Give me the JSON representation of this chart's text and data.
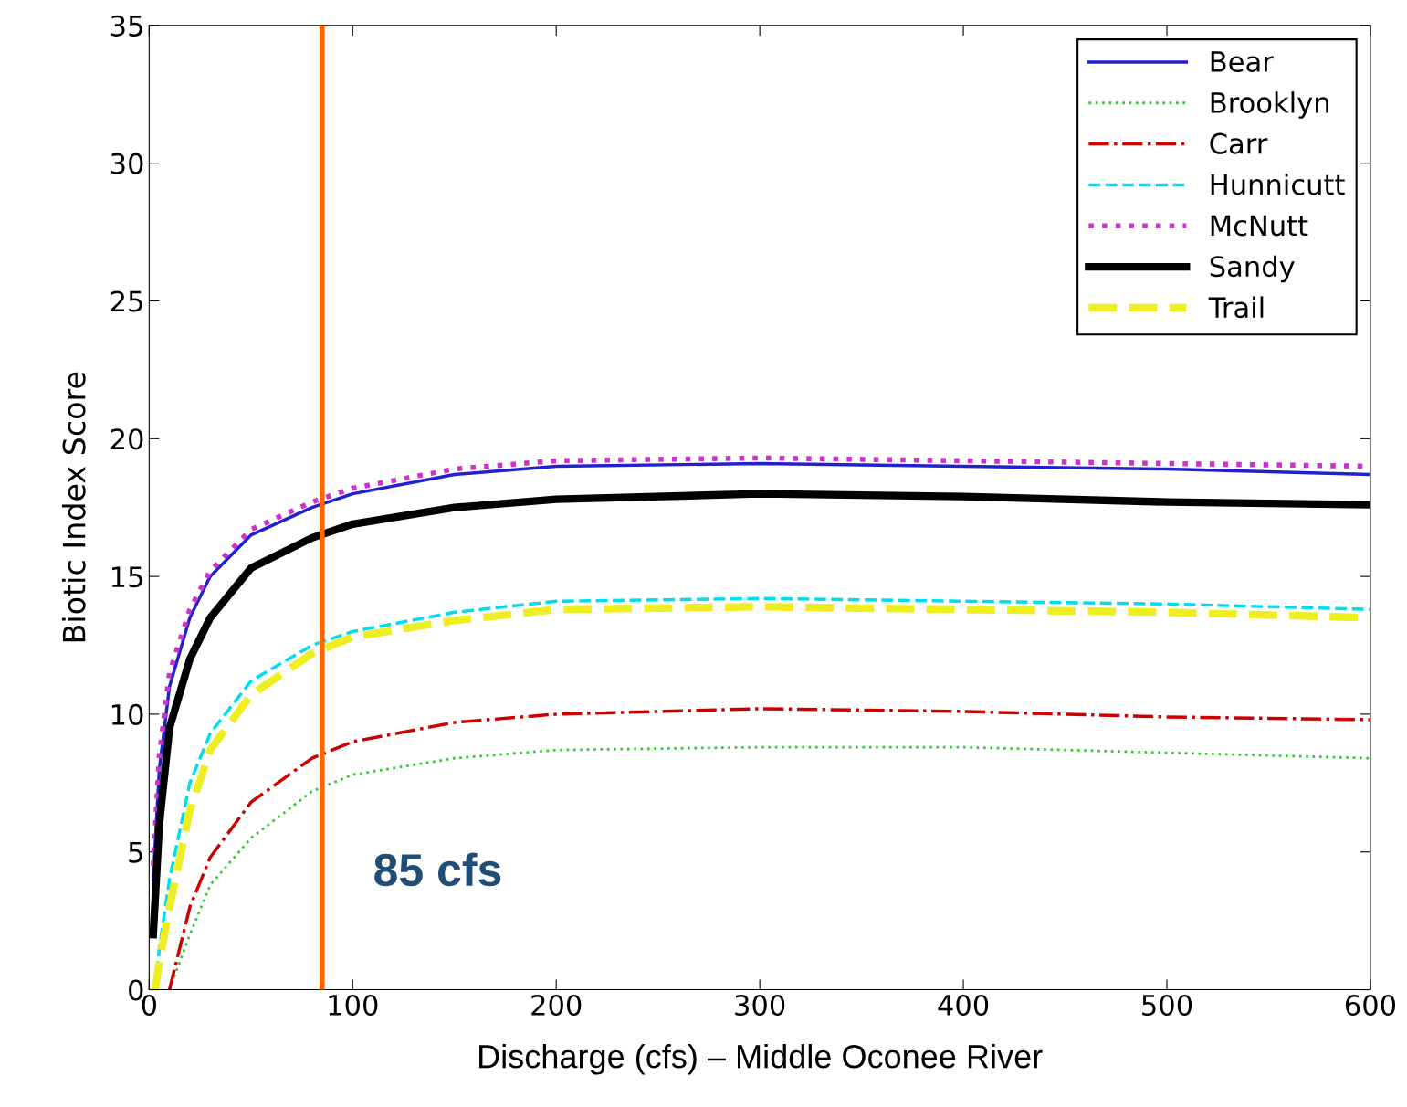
{
  "chart_data": {
    "type": "line",
    "xlabel": "Discharge (cfs) – Middle Oconee River",
    "ylabel": "Biotic Index Score",
    "xlim": [
      0,
      600
    ],
    "xticks": [
      0,
      100,
      200,
      300,
      400,
      500,
      600
    ],
    "ylim": [
      0,
      35
    ],
    "yticks": [
      0,
      5,
      10,
      15,
      20,
      25,
      30,
      35
    ],
    "grid": false,
    "legend": "top right",
    "series": [
      {
        "name": "Bear",
        "color": "#2222cc",
        "line_style": "solid",
        "x": [
          2,
          5,
          10,
          20,
          30,
          50,
          80,
          100,
          150,
          200,
          300,
          400,
          500,
          600
        ],
        "values": [
          4,
          8,
          11,
          13.5,
          15,
          16.5,
          17.5,
          18,
          18.7,
          19,
          19.1,
          19,
          18.9,
          18.7
        ]
      },
      {
        "name": "Brooklyn",
        "color": "#33cc33",
        "line_style": "dotted",
        "x": [
          10,
          15,
          20,
          30,
          50,
          80,
          100,
          150,
          200,
          300,
          400,
          500,
          600
        ],
        "values": [
          0,
          1,
          2,
          3.8,
          5.5,
          7.2,
          7.8,
          8.4,
          8.7,
          8.8,
          8.8,
          8.6,
          8.4
        ]
      },
      {
        "name": "Carr",
        "color": "#cc0000",
        "line_style": "dashdot",
        "x": [
          10,
          15,
          20,
          30,
          50,
          80,
          100,
          150,
          200,
          300,
          400,
          500,
          600
        ],
        "values": [
          0,
          1.5,
          3,
          4.8,
          6.8,
          8.4,
          9,
          9.7,
          10,
          10.2,
          10.1,
          9.9,
          9.8
        ]
      },
      {
        "name": "Hunnicutt",
        "color": "#00ddee",
        "line_style": "dashed",
        "x": [
          3,
          5,
          10,
          20,
          30,
          50,
          80,
          100,
          150,
          200,
          300,
          400,
          500,
          600
        ],
        "values": [
          0,
          1.5,
          4,
          7.5,
          9.3,
          11.2,
          12.5,
          13,
          13.7,
          14.1,
          14.2,
          14.1,
          14,
          13.8
        ]
      },
      {
        "name": "McNutt",
        "color": "#cc33cc",
        "line_style": "dotted",
        "x": [
          2,
          5,
          10,
          20,
          30,
          50,
          80,
          100,
          150,
          200,
          300,
          400,
          500,
          600
        ],
        "values": [
          4.5,
          8.5,
          11.5,
          13.8,
          15.2,
          16.7,
          17.7,
          18.2,
          18.9,
          19.2,
          19.3,
          19.2,
          19.1,
          19
        ]
      },
      {
        "name": "Sandy",
        "color": "#000000",
        "line_style": "solid",
        "x": [
          2,
          5,
          10,
          20,
          30,
          50,
          80,
          100,
          150,
          200,
          300,
          400,
          500,
          600
        ],
        "values": [
          2,
          6,
          9.5,
          12,
          13.5,
          15.3,
          16.4,
          16.9,
          17.5,
          17.8,
          18,
          17.9,
          17.7,
          17.6
        ]
      },
      {
        "name": "Trail",
        "color": "#eeee22",
        "line_style": "dashed",
        "x": [
          3,
          5,
          10,
          20,
          30,
          50,
          80,
          100,
          150,
          200,
          300,
          400,
          500,
          600
        ],
        "values": [
          0,
          1,
          3,
          6.5,
          8.7,
          10.7,
          12.2,
          12.8,
          13.4,
          13.8,
          13.9,
          13.8,
          13.7,
          13.5
        ]
      }
    ],
    "ref_lines": [
      {
        "axis": "x",
        "value": 85,
        "label": "85 cfs",
        "color": "#ff6600"
      }
    ]
  }
}
